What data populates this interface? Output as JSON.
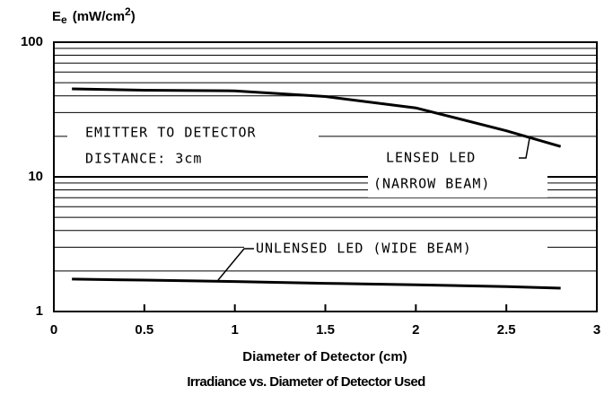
{
  "chart_data": {
    "type": "line",
    "title": "Irradiance vs. Diameter of Detector Used",
    "xlabel": "Diameter of Detector (cm)",
    "ylabel": {
      "base": "E",
      "sub": "e",
      "unit": "(mW/cm",
      "sup": "2",
      "close": ")"
    },
    "x": [
      0.1,
      0.5,
      1,
      1.5,
      2,
      2.5,
      2.8
    ],
    "series": [
      {
        "name": "LENSED LED",
        "name2": "(NARROW BEAM)",
        "color": "#000000",
        "values": [
          45,
          44,
          43.5,
          39.5,
          32.5,
          22,
          16.8
        ]
      },
      {
        "name": "UNLENSED LED (WIDE BEAM)",
        "color": "#000000",
        "values": [
          1.74,
          1.71,
          1.67,
          1.62,
          1.58,
          1.53,
          1.49
        ]
      }
    ],
    "annotations": [
      "EMITTER TO DETECTOR",
      "DISTANCE: 3cm"
    ],
    "xlim": [
      0,
      3
    ],
    "xticks": [
      0,
      0.5,
      1,
      1.5,
      2,
      2.5,
      3
    ],
    "ylim": [
      1,
      100
    ],
    "yticks": [
      1,
      10,
      100
    ],
    "ylog": true,
    "grid": true,
    "yminor": [
      2,
      3,
      4,
      5,
      6,
      7,
      8,
      9,
      20,
      30,
      40,
      50,
      60,
      70,
      80,
      90
    ]
  }
}
